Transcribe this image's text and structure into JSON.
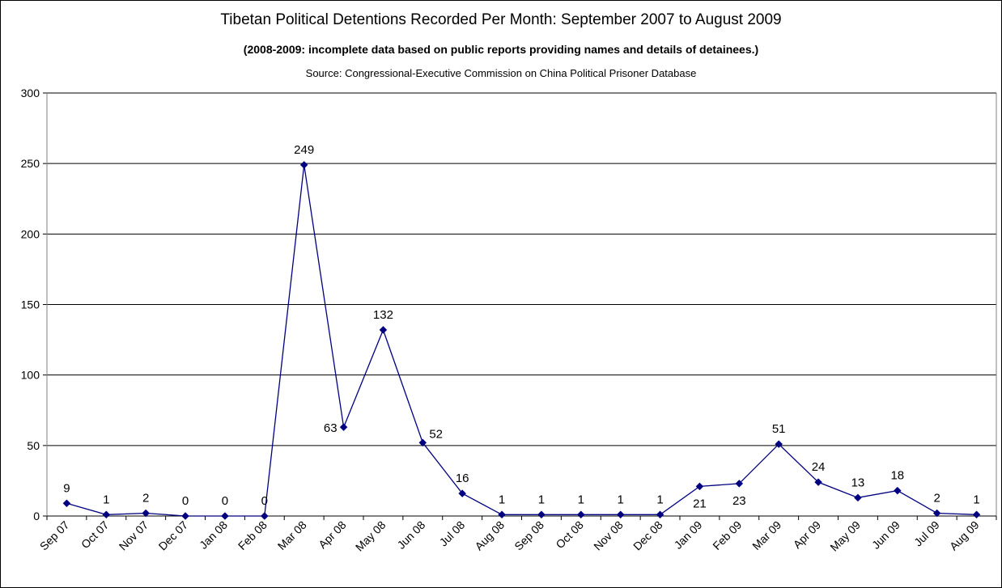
{
  "chart_data": {
    "type": "line",
    "title": "Tibetan Political Detentions Recorded Per Month: September 2007 to August 2009",
    "subtitle": "(2008-2009: incomplete data based on public reports providing names and details of detainees.)",
    "source": "Source: Congressional-Executive Commission on China Political Prisoner Database",
    "xlabel": "",
    "ylabel": "",
    "categories": [
      "Sep 07",
      "Oct 07",
      "Nov 07",
      "Dec 07",
      "Jan 08",
      "Feb 08",
      "Mar 08",
      "Apr 08",
      "May 08",
      "Jun 08",
      "Jul 08",
      "Aug 08",
      "Sep 08",
      "Oct 08",
      "Nov 08",
      "Dec 08",
      "Jan 09",
      "Feb 09",
      "Mar 09",
      "Apr 09",
      "May 09",
      "Jun 09",
      "Jul 09",
      "Aug 09"
    ],
    "values": [
      9,
      1,
      2,
      0,
      0,
      0,
      249,
      63,
      132,
      52,
      16,
      1,
      1,
      1,
      1,
      1,
      21,
      23,
      51,
      24,
      13,
      18,
      2,
      1
    ],
    "data_label_positions": [
      "above",
      "above",
      "above",
      "above",
      "above",
      "above",
      "above",
      "left",
      "above",
      "right",
      "above",
      "above",
      "above",
      "above",
      "above",
      "above",
      "below",
      "below",
      "above",
      "above",
      "above",
      "above",
      "above",
      "above"
    ],
    "ylim": [
      0,
      300
    ],
    "yticks": [
      0,
      50,
      100,
      150,
      200,
      250,
      300
    ],
    "grid": true,
    "legend": "none",
    "colors": {
      "series": "#000080",
      "grid": "#000000",
      "axis": "#808080"
    }
  }
}
